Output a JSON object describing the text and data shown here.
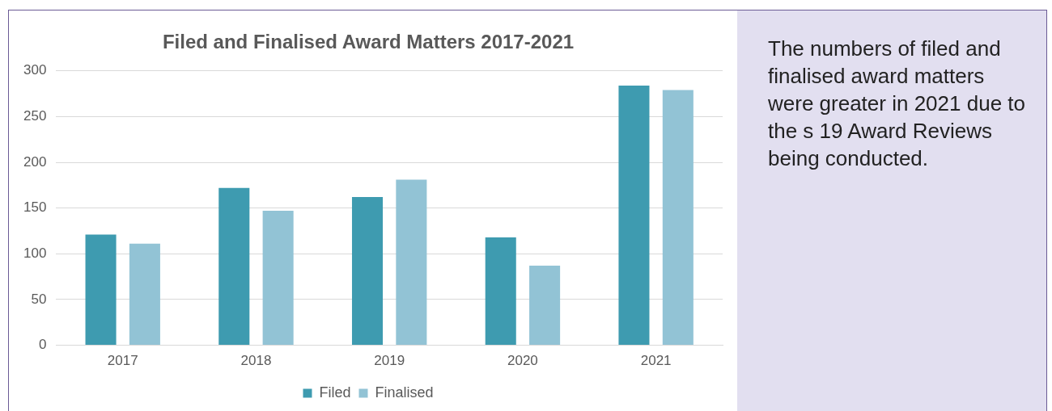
{
  "chart_data": {
    "type": "bar",
    "title": "Filed and Finalised Award Matters 2017-2021",
    "categories": [
      "2017",
      "2018",
      "2019",
      "2020",
      "2021"
    ],
    "series": [
      {
        "name": "Filed",
        "color": "#3e9bb0",
        "values": [
          121,
          172,
          162,
          118,
          284
        ]
      },
      {
        "name": "Finalised",
        "color": "#92c3d5",
        "values": [
          111,
          147,
          181,
          87,
          279
        ]
      }
    ],
    "ylim": [
      0,
      300
    ],
    "yticks": [
      0,
      50,
      100,
      150,
      200,
      250,
      300
    ],
    "grid": "y",
    "legend": "bottom",
    "annotations": [
      "The numbers of filed and finalised award matters were greater in 2021 due to the s 19 Award Reviews being conducted."
    ]
  }
}
